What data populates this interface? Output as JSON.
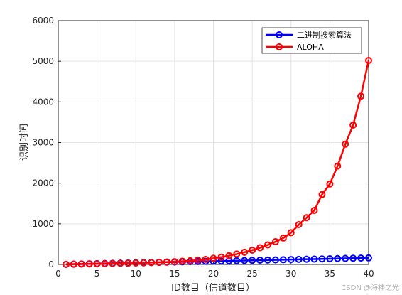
{
  "chart_data": {
    "type": "line",
    "title": "",
    "xlabel": "ID数目（信道数目）",
    "ylabel": "识别时间",
    "xlim": [
      0,
      40
    ],
    "ylim": [
      0,
      6000
    ],
    "xticks": [
      0,
      5,
      10,
      15,
      20,
      25,
      30,
      35,
      40
    ],
    "yticks": [
      0,
      1000,
      2000,
      3000,
      4000,
      5000,
      6000
    ],
    "grid": true,
    "legend_position": "top-right",
    "x": [
      1,
      2,
      3,
      4,
      5,
      6,
      7,
      8,
      9,
      10,
      11,
      12,
      13,
      14,
      15,
      16,
      17,
      18,
      19,
      20,
      21,
      22,
      23,
      24,
      25,
      26,
      27,
      28,
      29,
      30,
      31,
      32,
      33,
      34,
      35,
      36,
      37,
      38,
      39,
      40
    ],
    "series": [
      {
        "name": "二进制搜索算法",
        "color": "#0000ff",
        "marker": "circle",
        "values": [
          3,
          8,
          12,
          16,
          20,
          24,
          28,
          32,
          36,
          40,
          44,
          48,
          52,
          56,
          60,
          64,
          68,
          72,
          76,
          80,
          84,
          88,
          92,
          96,
          100,
          104,
          108,
          112,
          116,
          120,
          124,
          128,
          132,
          136,
          140,
          144,
          148,
          152,
          156,
          160
        ]
      },
      {
        "name": "ALOHA",
        "color": "#ff0000",
        "marker": "circle",
        "values": [
          2,
          5,
          8,
          11,
          14,
          18,
          22,
          26,
          30,
          35,
          40,
          46,
          52,
          60,
          68,
          78,
          90,
          105,
          125,
          150,
          180,
          215,
          255,
          300,
          350,
          410,
          480,
          560,
          650,
          780,
          980,
          1150,
          1330,
          1720,
          1980,
          2420,
          2960,
          3430,
          4140,
          5020
        ]
      }
    ]
  },
  "watermark": "CSDN @海神之光"
}
